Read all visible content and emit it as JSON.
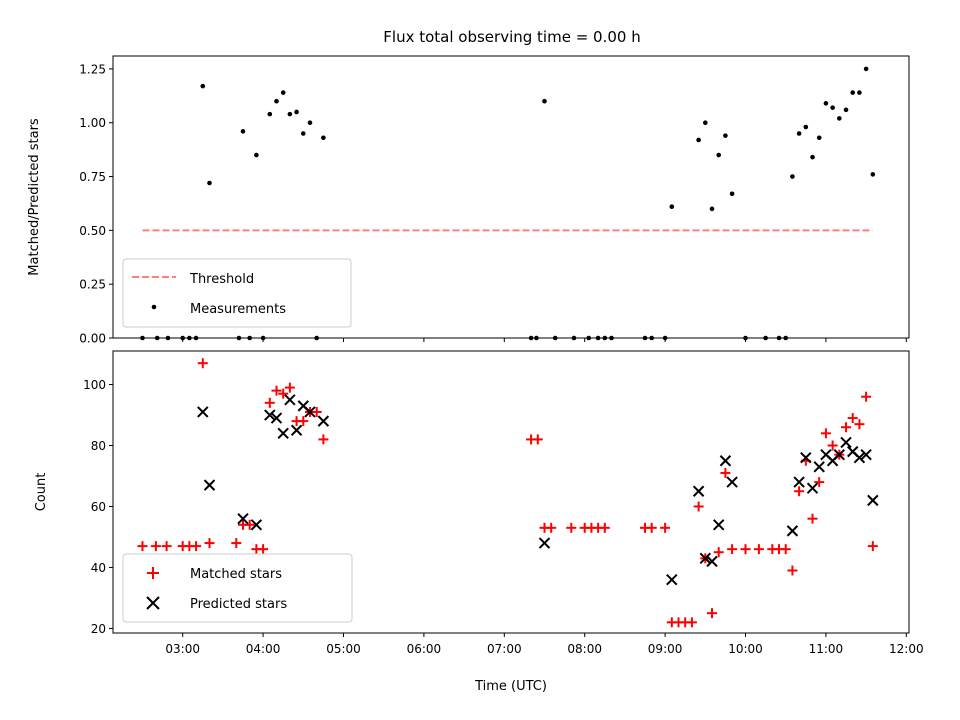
{
  "chart_data": [
    {
      "type": "scatter",
      "title": "Flux total observing time = 0.00 h",
      "xlabel": "",
      "ylabel": "Matched/Predicted stars",
      "xlim": [
        "02:08",
        "12:02"
      ],
      "ylim": [
        0,
        1.31
      ],
      "yticks": [
        "0.00",
        "0.25",
        "0.50",
        "0.75",
        "1.00",
        "1.25"
      ],
      "grid": false,
      "legend_position": "lower-left",
      "series": [
        {
          "name": "Threshold",
          "kind": "dashed-line",
          "color": "#ff7f7f",
          "points": [
            [
              "02:30",
              0.5
            ],
            [
              "11:35",
              0.5
            ]
          ]
        },
        {
          "name": "Measurements",
          "kind": "dot",
          "color": "#000000",
          "points": [
            [
              "02:30",
              0.0
            ],
            [
              "02:41",
              0.0
            ],
            [
              "02:49",
              0.0
            ],
            [
              "03:00",
              0.0
            ],
            [
              "03:05",
              0.0
            ],
            [
              "03:10",
              0.0
            ],
            [
              "03:15",
              1.17
            ],
            [
              "03:20",
              0.72
            ],
            [
              "03:42",
              0.0
            ],
            [
              "03:45",
              0.96
            ],
            [
              "03:50",
              0.0
            ],
            [
              "03:55",
              0.85
            ],
            [
              "04:00",
              0.0
            ],
            [
              "04:05",
              1.04
            ],
            [
              "04:10",
              1.1
            ],
            [
              "04:15",
              1.14
            ],
            [
              "04:20",
              1.04
            ],
            [
              "04:25",
              1.05
            ],
            [
              "04:30",
              0.95
            ],
            [
              "04:35",
              1.0
            ],
            [
              "04:40",
              0.0
            ],
            [
              "04:45",
              0.93
            ],
            [
              "07:20",
              0.0
            ],
            [
              "07:24",
              0.0
            ],
            [
              "07:30",
              1.1
            ],
            [
              "07:38",
              0.0
            ],
            [
              "07:52",
              0.0
            ],
            [
              "08:03",
              0.0
            ],
            [
              "08:10",
              0.0
            ],
            [
              "08:15",
              0.0
            ],
            [
              "08:20",
              0.0
            ],
            [
              "08:45",
              0.0
            ],
            [
              "08:50",
              0.0
            ],
            [
              "09:00",
              0.0
            ],
            [
              "09:05",
              0.61
            ],
            [
              "09:25",
              0.92
            ],
            [
              "09:30",
              1.0
            ],
            [
              "09:35",
              0.6
            ],
            [
              "09:40",
              0.85
            ],
            [
              "09:45",
              0.94
            ],
            [
              "09:50",
              0.67
            ],
            [
              "10:00",
              0.0
            ],
            [
              "10:15",
              0.0
            ],
            [
              "10:25",
              0.0
            ],
            [
              "10:30",
              0.0
            ],
            [
              "10:35",
              0.75
            ],
            [
              "10:40",
              0.95
            ],
            [
              "10:45",
              0.98
            ],
            [
              "10:50",
              0.84
            ],
            [
              "10:55",
              0.93
            ],
            [
              "11:00",
              1.09
            ],
            [
              "11:05",
              1.07
            ],
            [
              "11:10",
              1.02
            ],
            [
              "11:15",
              1.06
            ],
            [
              "11:20",
              1.14
            ],
            [
              "11:25",
              1.14
            ],
            [
              "11:30",
              1.25
            ],
            [
              "11:35",
              0.76
            ]
          ]
        }
      ]
    },
    {
      "type": "scatter",
      "title": "",
      "xlabel": "Time (UTC)",
      "ylabel": "Count",
      "xlim": [
        "02:08",
        "12:02"
      ],
      "ylim": [
        18.5,
        111
      ],
      "xticks": [
        "03:00",
        "04:00",
        "05:00",
        "06:00",
        "07:00",
        "08:00",
        "09:00",
        "10:00",
        "11:00",
        "12:00"
      ],
      "yticks": [
        "20",
        "40",
        "60",
        "80",
        "100"
      ],
      "grid": false,
      "legend_position": "lower-left",
      "series": [
        {
          "name": "Matched stars",
          "marker": "plus",
          "color": "#ff0000",
          "points": [
            [
              "02:30",
              47
            ],
            [
              "02:40",
              47
            ],
            [
              "02:48",
              47
            ],
            [
              "03:00",
              47
            ],
            [
              "03:05",
              47
            ],
            [
              "03:10",
              47
            ],
            [
              "03:15",
              107
            ],
            [
              "03:20",
              48
            ],
            [
              "03:40",
              48
            ],
            [
              "03:45",
              54
            ],
            [
              "03:50",
              54
            ],
            [
              "03:55",
              46
            ],
            [
              "04:00",
              46
            ],
            [
              "04:05",
              94
            ],
            [
              "04:10",
              98
            ],
            [
              "04:15",
              97
            ],
            [
              "04:20",
              99
            ],
            [
              "04:25",
              88
            ],
            [
              "04:30",
              88
            ],
            [
              "04:35",
              91
            ],
            [
              "04:40",
              91
            ],
            [
              "04:45",
              82
            ],
            [
              "07:20",
              82
            ],
            [
              "07:25",
              82
            ],
            [
              "07:30",
              53
            ],
            [
              "07:35",
              53
            ],
            [
              "07:50",
              53
            ],
            [
              "08:00",
              53
            ],
            [
              "08:05",
              53
            ],
            [
              "08:10",
              53
            ],
            [
              "08:15",
              53
            ],
            [
              "08:45",
              53
            ],
            [
              "08:50",
              53
            ],
            [
              "09:00",
              53
            ],
            [
              "09:05",
              22
            ],
            [
              "09:10",
              22
            ],
            [
              "09:15",
              22
            ],
            [
              "09:20",
              22
            ],
            [
              "09:25",
              60
            ],
            [
              "09:30",
              43
            ],
            [
              "09:35",
              25
            ],
            [
              "09:40",
              45
            ],
            [
              "09:45",
              71
            ],
            [
              "09:50",
              46
            ],
            [
              "10:00",
              46
            ],
            [
              "10:10",
              46
            ],
            [
              "10:20",
              46
            ],
            [
              "10:25",
              46
            ],
            [
              "10:30",
              46
            ],
            [
              "10:35",
              39
            ],
            [
              "10:40",
              65
            ],
            [
              "10:45",
              75
            ],
            [
              "10:50",
              56
            ],
            [
              "10:55",
              68
            ],
            [
              "11:00",
              84
            ],
            [
              "11:05",
              80
            ],
            [
              "11:10",
              77
            ],
            [
              "11:15",
              86
            ],
            [
              "11:20",
              89
            ],
            [
              "11:25",
              87
            ],
            [
              "11:30",
              96
            ],
            [
              "11:35",
              47
            ]
          ]
        },
        {
          "name": "Predicted stars",
          "marker": "x",
          "color": "#000000",
          "points": [
            [
              "03:15",
              91
            ],
            [
              "03:20",
              67
            ],
            [
              "03:45",
              56
            ],
            [
              "03:55",
              54
            ],
            [
              "04:05",
              90
            ],
            [
              "04:10",
              89
            ],
            [
              "04:15",
              84
            ],
            [
              "04:20",
              95
            ],
            [
              "04:25",
              85
            ],
            [
              "04:30",
              93
            ],
            [
              "04:35",
              91
            ],
            [
              "04:45",
              88
            ],
            [
              "07:30",
              48
            ],
            [
              "09:05",
              36
            ],
            [
              "09:25",
              65
            ],
            [
              "09:30",
              43
            ],
            [
              "09:35",
              42
            ],
            [
              "09:40",
              54
            ],
            [
              "09:45",
              75
            ],
            [
              "09:50",
              68
            ],
            [
              "10:35",
              52
            ],
            [
              "10:40",
              68
            ],
            [
              "10:45",
              76
            ],
            [
              "10:50",
              66
            ],
            [
              "10:55",
              73
            ],
            [
              "11:00",
              77
            ],
            [
              "11:05",
              75
            ],
            [
              "11:10",
              77
            ],
            [
              "11:15",
              81
            ],
            [
              "11:20",
              78
            ],
            [
              "11:25",
              76
            ],
            [
              "11:30",
              77
            ],
            [
              "11:35",
              62
            ]
          ]
        }
      ]
    }
  ]
}
